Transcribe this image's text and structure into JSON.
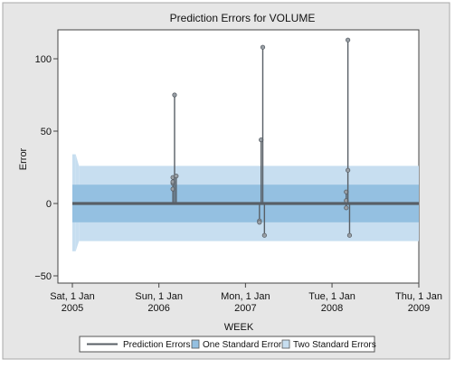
{
  "chart_data": {
    "type": "line",
    "title": "Prediction Errors for VOLUME",
    "xlabel": "WEEK",
    "ylabel": "Error",
    "ylim": [
      -55,
      120
    ],
    "yticks": [
      -50,
      0,
      50,
      100
    ],
    "xlim": [
      "2004-11-01",
      "2009-01-01"
    ],
    "xticks": [
      {
        "date": "2005-01-01",
        "line1": "Sat, 1 Jan",
        "line2": "2005"
      },
      {
        "date": "2006-01-01",
        "line1": "Sun, 1 Jan",
        "line2": "2006"
      },
      {
        "date": "2007-01-01",
        "line1": "Mon, 1 Jan",
        "line2": "2007"
      },
      {
        "date": "2008-01-01",
        "line1": "Tue, 1 Jan",
        "line2": "2008"
      },
      {
        "date": "2009-01-01",
        "line1": "Thu, 1 Jan",
        "line2": "2009"
      }
    ],
    "grid": false,
    "legend_position": "bottom",
    "colors": {
      "background": "#e6e6e6",
      "plot_area": "#ffffff",
      "band_two_se": "#c7def0",
      "band_one_se": "#94c0e1",
      "series": "#585f66"
    },
    "series": [
      {
        "name": "Prediction Errors",
        "x_range": [
          "2005-01-01",
          "2009-01-01"
        ],
        "baseline": 0,
        "spikes": [
          {
            "date": "2006-03-01",
            "values": [
              10,
              14,
              15,
              18
            ]
          },
          {
            "date": "2006-03-08",
            "values": [
              75
            ]
          },
          {
            "date": "2006-03-15",
            "values": [
              19
            ]
          },
          {
            "date": "2007-03-01",
            "values": [
              -12,
              -13
            ]
          },
          {
            "date": "2007-03-08",
            "values": [
              44
            ]
          },
          {
            "date": "2007-03-15",
            "values": [
              108
            ]
          },
          {
            "date": "2007-03-22",
            "values": [
              -22
            ]
          },
          {
            "date": "2008-03-01",
            "values": [
              8,
              2,
              -3
            ]
          },
          {
            "date": "2008-03-08",
            "values": [
              23,
              113
            ]
          },
          {
            "date": "2008-03-15",
            "values": [
              -22
            ]
          }
        ]
      },
      {
        "name": "One Standard Error",
        "band": [
          {
            "from": "2005-01-01",
            "to": "2009-01-01",
            "lower": -13,
            "upper": 13
          }
        ]
      },
      {
        "name": "Two Standard Errors",
        "band": [
          {
            "from": "2005-01-01",
            "to": "2005-01-15",
            "lower": -33,
            "upper": 34
          },
          {
            "from": "2005-01-29",
            "to": "2009-01-01",
            "lower": -26,
            "upper": 26
          }
        ]
      }
    ],
    "legend": [
      {
        "label": "Prediction Errors",
        "kind": "line"
      },
      {
        "label": "One Standard Error",
        "kind": "one-se"
      },
      {
        "label": "Two Standard Errors",
        "kind": "two-se"
      }
    ]
  }
}
